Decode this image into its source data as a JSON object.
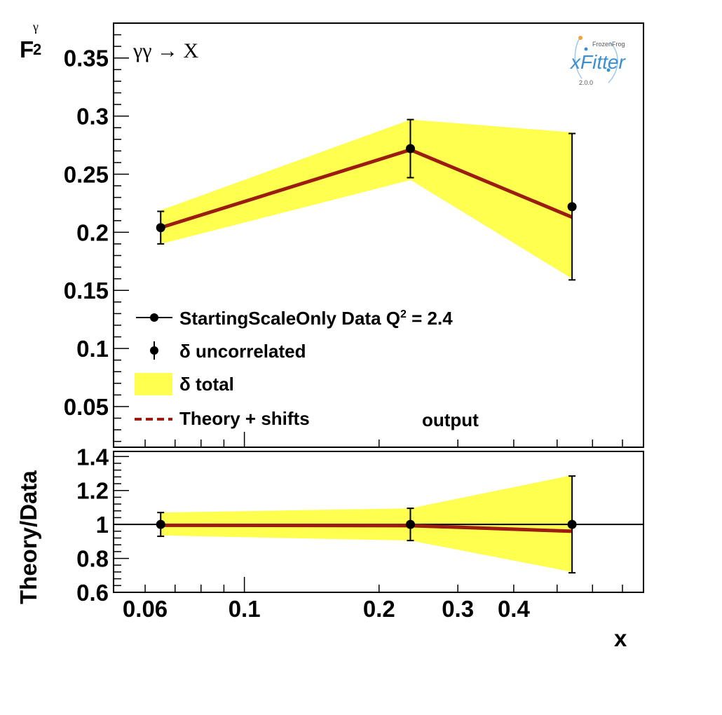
{
  "chart_data": [
    {
      "type": "line",
      "panel": "main",
      "process_label": "γγ → X",
      "ylabel_base": "F",
      "ylabel_sub": "2",
      "ylabel_sup": "γ",
      "xscale": "log",
      "ylim": [
        0.015,
        0.38
      ],
      "y_ticks": [
        0.05,
        0.1,
        0.15,
        0.2,
        0.25,
        0.3,
        0.35
      ],
      "y_tick_labels": [
        "0.05",
        "0.1",
        "0.15",
        "0.2",
        "0.25",
        "0.3",
        "0.35"
      ],
      "data": {
        "x": [
          0.065,
          0.235,
          0.54
        ],
        "y": [
          0.204,
          0.272,
          0.222
        ],
        "err_uncorrelated": [
          0.014,
          0.025,
          0.063
        ]
      },
      "total_band": {
        "x": [
          0.065,
          0.235,
          0.54
        ],
        "low": [
          0.19,
          0.245,
          0.16
        ],
        "high": [
          0.219,
          0.297,
          0.286
        ]
      },
      "theory": {
        "x": [
          0.065,
          0.235,
          0.54
        ],
        "y": [
          0.204,
          0.271,
          0.213
        ]
      },
      "legend": {
        "placement": "bottom-left",
        "entries": [
          {
            "symbol": "line-marker",
            "label": "StartingScaleOnly  Data Q",
            "sup": "2",
            "suffix": " = 2.4"
          },
          {
            "symbol": "marker-errbar",
            "label": "δ uncorrelated"
          },
          {
            "symbol": "yellow-box",
            "label": "δ total"
          },
          {
            "symbol": "dashed-line",
            "label": "Theory + shifts"
          }
        ],
        "extra_label": "output"
      },
      "logo": {
        "top": "FrozenFrog",
        "main": "xFitter",
        "version": "2.0.0"
      }
    },
    {
      "type": "line",
      "panel": "ratio",
      "ylabel": "Theory/Data",
      "xlabel": "x",
      "xscale": "log",
      "xlim": [
        0.051,
        0.78
      ],
      "x_ticks": [
        0.06,
        0.1,
        0.2,
        0.3,
        0.4
      ],
      "x_tick_labels": [
        "0.06",
        "0.1",
        "0.2",
        "0.3",
        "0.4"
      ],
      "ylim": [
        0.6,
        1.43
      ],
      "y_ticks": [
        0.6,
        0.8,
        1.0,
        1.2,
        1.4
      ],
      "y_tick_labels": [
        "0.6",
        "0.8",
        "1",
        "1.2",
        "1.4"
      ],
      "reference_line": 1.0,
      "data": {
        "x": [
          0.065,
          0.235,
          0.54
        ],
        "y": [
          1.0,
          1.0,
          1.0
        ],
        "err_uncorrelated": [
          0.07,
          0.095,
          0.285
        ]
      },
      "total_band": {
        "x": [
          0.065,
          0.235,
          0.54
        ],
        "low": [
          0.935,
          0.905,
          0.72
        ],
        "high": [
          1.07,
          1.095,
          1.29
        ]
      },
      "theory": {
        "x": [
          0.065,
          0.235,
          0.54
        ],
        "y": [
          0.995,
          0.993,
          0.96
        ]
      }
    }
  ],
  "colors": {
    "band": "#ffff50",
    "theory": "#9b1d12",
    "marker": "#000000",
    "logo_blue": "#3a8fd0"
  }
}
